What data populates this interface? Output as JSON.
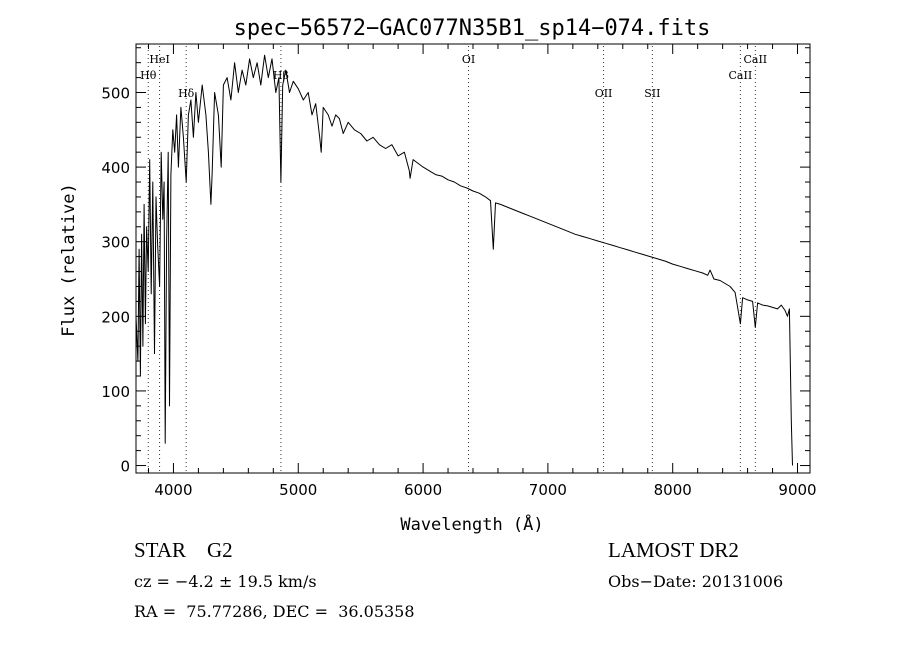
{
  "chart_data": {
    "type": "line",
    "title": "spec−56572−GAC077N35B1_sp14−074.fits",
    "xlabel": "Wavelength (Å)",
    "ylabel": "Flux (relative)",
    "xlim": [
      3700,
      9100
    ],
    "ylim": [
      -10,
      565
    ],
    "x_ticks": [
      4000,
      5000,
      6000,
      7000,
      8000,
      9000
    ],
    "y_ticks": [
      0,
      100,
      200,
      300,
      400,
      500
    ],
    "grid": false,
    "line_color": "#000000",
    "line_markers": [
      {
        "name": "HeI",
        "wavelength": 3889,
        "label_row": "top"
      },
      {
        "name": "Hθ",
        "wavelength": 3798,
        "label_row": "second"
      },
      {
        "name": "Hδ",
        "wavelength": 4102,
        "label_row": "third"
      },
      {
        "name": "Hβ",
        "wavelength": 4861,
        "label_row": "second"
      },
      {
        "name": "OI",
        "wavelength": 6364,
        "label_row": "top"
      },
      {
        "name": "OII",
        "wavelength": 7446,
        "label_row": "third"
      },
      {
        "name": "SII",
        "wavelength": 7837,
        "label_row": "third"
      },
      {
        "name": "CaII",
        "wavelength": 8542,
        "label_row": "second"
      },
      {
        "name": "CaII",
        "wavelength": 8662,
        "label_row": "top"
      }
    ],
    "series": [
      {
        "points": [
          [
            3700,
            200
          ],
          [
            3715,
            140
          ],
          [
            3725,
            290
          ],
          [
            3735,
            120
          ],
          [
            3745,
            310
          ],
          [
            3755,
            160
          ],
          [
            3765,
            350
          ],
          [
            3775,
            190
          ],
          [
            3785,
            320
          ],
          [
            3798,
            260
          ],
          [
            3810,
            410
          ],
          [
            3822,
            230
          ],
          [
            3835,
            380
          ],
          [
            3848,
            150
          ],
          [
            3860,
            360
          ],
          [
            3872,
            300
          ],
          [
            3889,
            240
          ],
          [
            3902,
            420
          ],
          [
            3915,
            330
          ],
          [
            3925,
            380
          ],
          [
            3934,
            30
          ],
          [
            3945,
            300
          ],
          [
            3958,
            420
          ],
          [
            3968,
            80
          ],
          [
            3980,
            390
          ],
          [
            3995,
            450
          ],
          [
            4010,
            420
          ],
          [
            4025,
            470
          ],
          [
            4040,
            400
          ],
          [
            4060,
            480
          ],
          [
            4080,
            440
          ],
          [
            4102,
            380
          ],
          [
            4120,
            470
          ],
          [
            4140,
            490
          ],
          [
            4160,
            440
          ],
          [
            4180,
            500
          ],
          [
            4200,
            460
          ],
          [
            4230,
            510
          ],
          [
            4260,
            470
          ],
          [
            4280,
            420
          ],
          [
            4300,
            350
          ],
          [
            4310,
            390
          ],
          [
            4330,
            500
          ],
          [
            4360,
            470
          ],
          [
            4383,
            400
          ],
          [
            4400,
            510
          ],
          [
            4430,
            520
          ],
          [
            4460,
            490
          ],
          [
            4490,
            540
          ],
          [
            4520,
            500
          ],
          [
            4550,
            530
          ],
          [
            4580,
            510
          ],
          [
            4610,
            545
          ],
          [
            4640,
            520
          ],
          [
            4670,
            540
          ],
          [
            4700,
            510
          ],
          [
            4730,
            550
          ],
          [
            4760,
            520
          ],
          [
            4790,
            545
          ],
          [
            4820,
            500
          ],
          [
            4845,
            520
          ],
          [
            4861,
            380
          ],
          [
            4875,
            510
          ],
          [
            4900,
            530
          ],
          [
            4930,
            500
          ],
          [
            4960,
            515
          ],
          [
            5000,
            505
          ],
          [
            5040,
            490
          ],
          [
            5080,
            500
          ],
          [
            5110,
            470
          ],
          [
            5140,
            485
          ],
          [
            5172,
            440
          ],
          [
            5184,
            420
          ],
          [
            5200,
            480
          ],
          [
            5240,
            470
          ],
          [
            5270,
            455
          ],
          [
            5300,
            470
          ],
          [
            5330,
            465
          ],
          [
            5360,
            445
          ],
          [
            5400,
            460
          ],
          [
            5450,
            450
          ],
          [
            5500,
            445
          ],
          [
            5550,
            435
          ],
          [
            5600,
            440
          ],
          [
            5650,
            430
          ],
          [
            5700,
            425
          ],
          [
            5750,
            430
          ],
          [
            5800,
            415
          ],
          [
            5850,
            420
          ],
          [
            5890,
            395
          ],
          [
            5896,
            385
          ],
          [
            5920,
            410
          ],
          [
            5960,
            405
          ],
          [
            6000,
            400
          ],
          [
            6050,
            395
          ],
          [
            6100,
            390
          ],
          [
            6150,
            388
          ],
          [
            6200,
            383
          ],
          [
            6250,
            380
          ],
          [
            6300,
            375
          ],
          [
            6350,
            372
          ],
          [
            6400,
            368
          ],
          [
            6450,
            365
          ],
          [
            6500,
            360
          ],
          [
            6540,
            355
          ],
          [
            6563,
            290
          ],
          [
            6580,
            352
          ],
          [
            6620,
            350
          ],
          [
            6680,
            346
          ],
          [
            6740,
            342
          ],
          [
            6800,
            338
          ],
          [
            6860,
            334
          ],
          [
            6920,
            330
          ],
          [
            6980,
            326
          ],
          [
            7040,
            322
          ],
          [
            7100,
            318
          ],
          [
            7160,
            314
          ],
          [
            7220,
            310
          ],
          [
            7280,
            307
          ],
          [
            7340,
            304
          ],
          [
            7400,
            301
          ],
          [
            7460,
            298
          ],
          [
            7520,
            295
          ],
          [
            7580,
            292
          ],
          [
            7640,
            289
          ],
          [
            7700,
            286
          ],
          [
            7760,
            283
          ],
          [
            7820,
            280
          ],
          [
            7880,
            277
          ],
          [
            7940,
            274
          ],
          [
            8000,
            270
          ],
          [
            8060,
            267
          ],
          [
            8120,
            264
          ],
          [
            8180,
            261
          ],
          [
            8240,
            258
          ],
          [
            8280,
            255
          ],
          [
            8300,
            262
          ],
          [
            8330,
            250
          ],
          [
            8380,
            248
          ],
          [
            8420,
            244
          ],
          [
            8460,
            240
          ],
          [
            8500,
            232
          ],
          [
            8542,
            190
          ],
          [
            8560,
            225
          ],
          [
            8600,
            222
          ],
          [
            8640,
            220
          ],
          [
            8662,
            185
          ],
          [
            8680,
            218
          ],
          [
            8720,
            215
          ],
          [
            8760,
            214
          ],
          [
            8800,
            212
          ],
          [
            8840,
            210
          ],
          [
            8870,
            215
          ],
          [
            8900,
            208
          ],
          [
            8920,
            200
          ],
          [
            8935,
            210
          ],
          [
            8950,
            60
          ],
          [
            8960,
            0
          ]
        ]
      }
    ]
  },
  "info": {
    "object_class": "STAR    G2",
    "redshift": "cz = −4.2 ± 19.5 km/s",
    "coords": "RA =  75.77286, DEC =  36.05358",
    "survey": "LAMOST DR2",
    "obs_date": "Obs−Date: 20131006"
  }
}
